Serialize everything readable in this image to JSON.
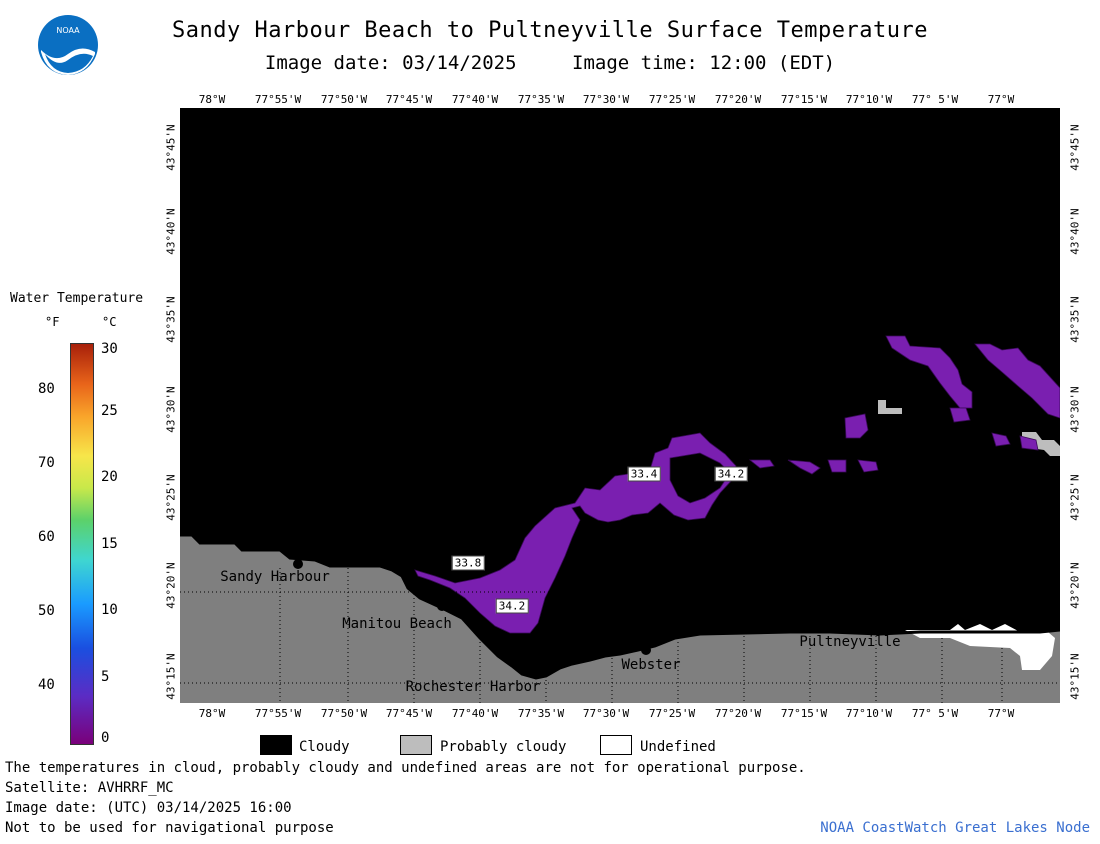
{
  "header": {
    "title": "Sandy Harbour Beach to Pultneyville Surface Temperature",
    "image_date": "Image date: 03/14/2025",
    "image_time": "Image time: 12:00 (EDT)"
  },
  "logo": {
    "text": "NOAA"
  },
  "axes": {
    "longitude_labels": [
      "78°W",
      "77°55'W",
      "77°50'W",
      "77°45'W",
      "77°40'W",
      "77°35'W",
      "77°30'W",
      "77°25'W",
      "77°20'W",
      "77°15'W",
      "77°10'W",
      "77° 5'W",
      "77°W"
    ],
    "latitude_labels": [
      "43°45'N",
      "43°40'N",
      "43°35'N",
      "43°30'N",
      "43°25'N",
      "43°20'N",
      "43°15'N"
    ]
  },
  "places": [
    {
      "name": "Sandy Harbour"
    },
    {
      "name": "Manitou Beach"
    },
    {
      "name": "Rochester Harbor"
    },
    {
      "name": "Webster"
    },
    {
      "name": "Pultneyville"
    }
  ],
  "temperature_labels": [
    "33.4",
    "34.2",
    "33.8",
    "34.2"
  ],
  "legend": {
    "title": "Water Temperature",
    "unit_f": "°F",
    "unit_c": "°C",
    "f_ticks": [
      "80",
      "70",
      "60",
      "50",
      "40"
    ],
    "c_ticks": [
      "30",
      "25",
      "20",
      "15",
      "10",
      "5",
      "0"
    ]
  },
  "key": {
    "cloudy": "Cloudy",
    "probably_cloudy": "Probably cloudy",
    "undefined": "Undefined"
  },
  "footer": {
    "disclaimer": "The temperatures in cloud, probably cloudy and undefined areas are not for operational purpose.",
    "satellite": "Satellite: AVHRRF_MC",
    "utc_date": "Image date: (UTC) 03/14/2025  16:00",
    "navigation": "Not to be used for navigational purpose",
    "credit": "NOAA CoastWatch Great Lakes Node"
  },
  "colors": {
    "cloud": "#000000",
    "land": "#7f7f7f",
    "probably_cloudy": "#bdbdbd",
    "undefined": "#ffffff",
    "water_cold": "#7a1fb0",
    "credit_link": "#3a6fd0"
  }
}
